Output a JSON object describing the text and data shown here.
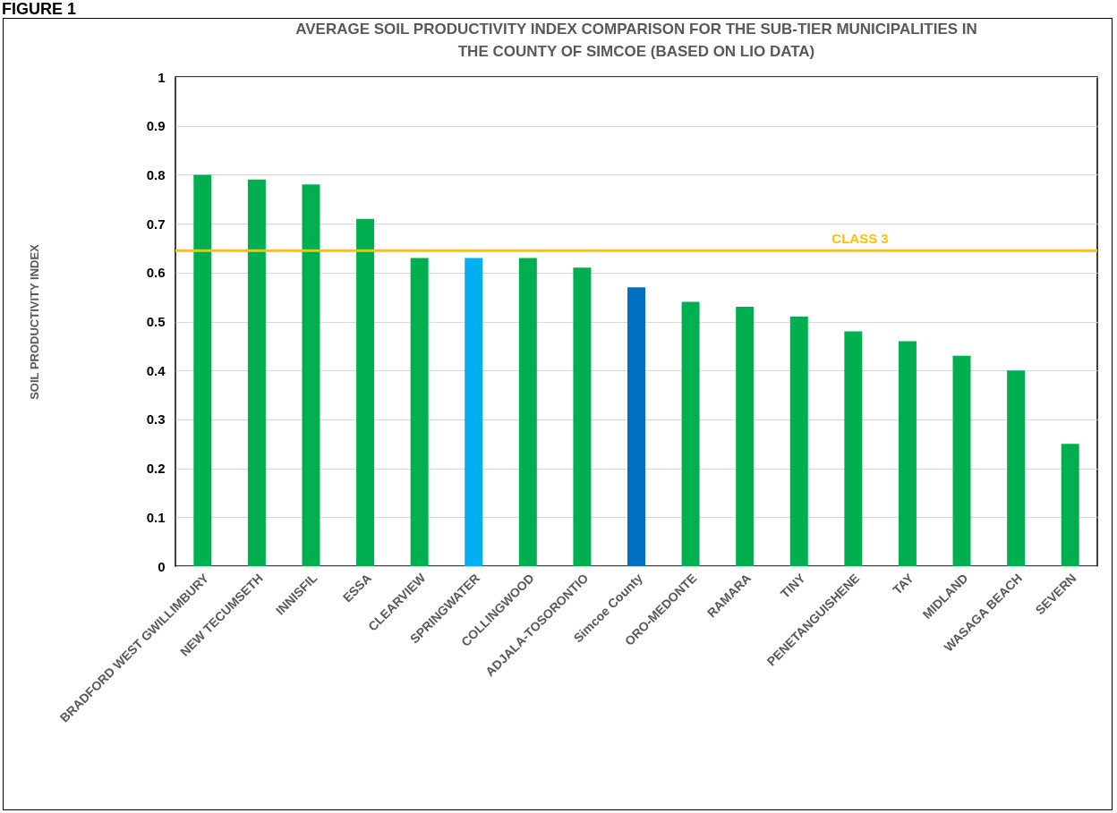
{
  "chart_data": {
    "type": "bar",
    "title": "AVERAGE SOIL PRODUCTIVITY INDEX COMPARISON FOR THE SUB-TIER MUNICIPALITIES IN\nTHE COUNTY OF SIMCOE (BASED ON LIO DATA)",
    "ylabel": "SOIL PRODUCTIVITY INDEX",
    "annotations": [
      "FIGURE 1"
    ],
    "categories": [
      "BRADFORD WEST GWILLIMBURY",
      "NEW TECUMSETH",
      "INNISFIL",
      "ESSA",
      "CLEARVIEW",
      "SPRINGWATER",
      "COLLINGWOOD",
      "ADJALA-TOSORONTIO",
      "Simcoe County",
      "ORO-MEDONTE",
      "RAMARA",
      "TINY",
      "PENETANGUISHENE",
      "TAY",
      "MIDLAND",
      "WASAGA BEACH",
      "SEVERN"
    ],
    "values": [
      0.8,
      0.79,
      0.78,
      0.71,
      0.63,
      0.63,
      0.63,
      0.61,
      0.57,
      0.54,
      0.53,
      0.51,
      0.48,
      0.46,
      0.43,
      0.4,
      0.25
    ],
    "colors": [
      "#00b050",
      "#00b050",
      "#00b050",
      "#00b050",
      "#00b050",
      "#00b0f0",
      "#00b050",
      "#00b050",
      "#0070c0",
      "#00b050",
      "#00b050",
      "#00b050",
      "#00b050",
      "#00b050",
      "#00b050",
      "#00b050",
      "#00b050"
    ],
    "ylim": [
      0,
      1
    ],
    "yticks": [
      0,
      0.1,
      0.2,
      0.3,
      0.4,
      0.5,
      0.6,
      0.7,
      0.8,
      0.9,
      1
    ],
    "grid": "y",
    "ref_lines": [
      {
        "axis": "y",
        "value": 0.645,
        "label": "CLASS 3",
        "color": "#ffc000"
      }
    ]
  }
}
